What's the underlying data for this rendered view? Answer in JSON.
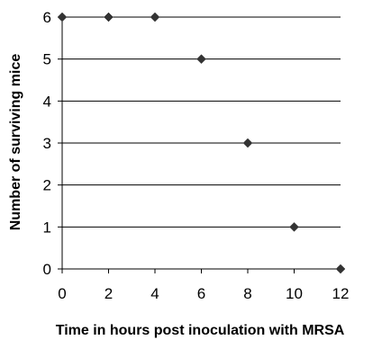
{
  "chart_data": {
    "type": "scatter",
    "xlabel": "Time in hours post inoculation with MRSA",
    "ylabel": "Number of surviving mice",
    "xlim": [
      0,
      12
    ],
    "ylim": [
      0,
      6
    ],
    "xticks": [
      "0",
      "2",
      "4",
      "6",
      "8",
      "10",
      "12"
    ],
    "yticks": [
      "0",
      "1",
      "2",
      "3",
      "4",
      "5",
      "6"
    ],
    "grid": "horizontal",
    "legend": "none",
    "marker": "diamond",
    "series": [
      {
        "x": [
          0,
          2,
          4,
          6,
          8,
          10,
          12
        ],
        "y": [
          6,
          6,
          6,
          5,
          3,
          1,
          0
        ]
      }
    ]
  },
  "colors": {
    "marker": "#333333",
    "gridline": "#000000",
    "axis": "#000000"
  }
}
